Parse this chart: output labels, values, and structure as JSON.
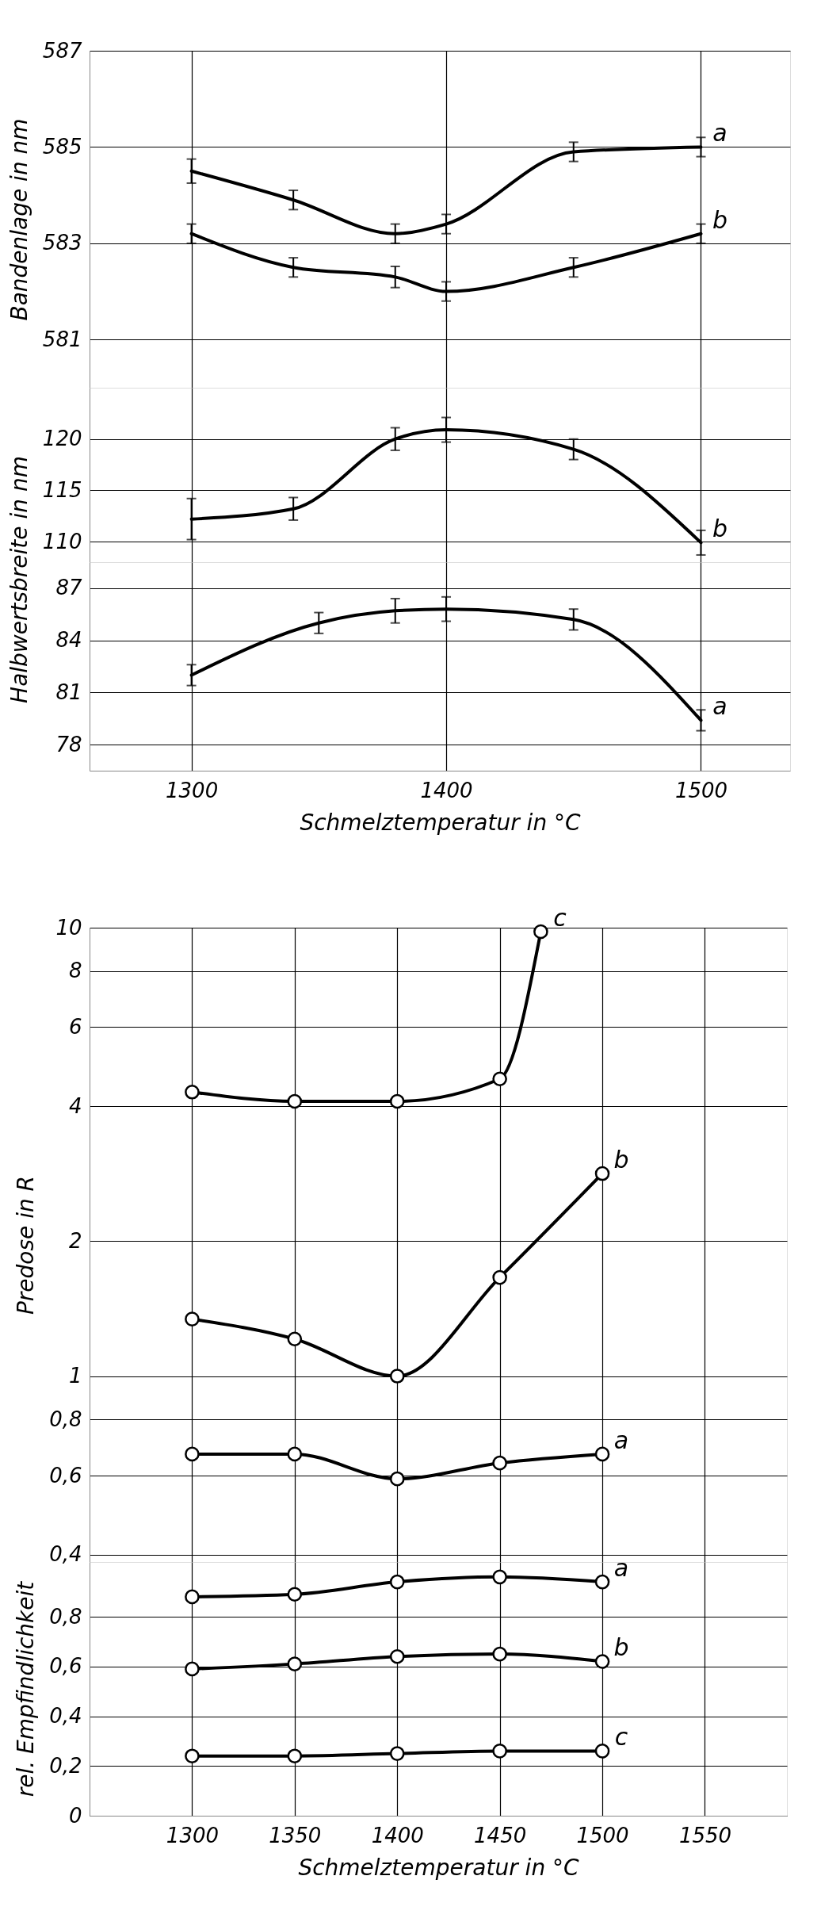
{
  "chart_data": [
    {
      "type": "line",
      "ylabel": "Bandenlage in nm",
      "xlim": [
        1260,
        1535
      ],
      "xticks": [
        1300,
        1400,
        1500
      ],
      "ylim": [
        580,
        587
      ],
      "yticks": [
        581,
        583,
        585,
        587
      ],
      "grid": true,
      "tick_labels": "y",
      "marker": "none",
      "line_style": "solid",
      "x": [
        1300,
        1340,
        1380,
        1400,
        1450,
        1500
      ],
      "series": [
        {
          "name": "a",
          "color": "#000000",
          "values": [
            584.5,
            583.9,
            583.2,
            583.4,
            584.9,
            585.0
          ],
          "errors": [
            0.25,
            0.2,
            0.2,
            0.2,
            0.2,
            0.2
          ]
        },
        {
          "name": "b",
          "color": "#000000",
          "values": [
            583.2,
            582.5,
            582.3,
            582.0,
            582.5,
            583.2
          ],
          "errors": [
            0.2,
            0.2,
            0.22,
            0.2,
            0.2,
            0.2
          ]
        }
      ]
    },
    {
      "type": "line",
      "ylabel": "Halbwertsbreite in nm",
      "xlim": [
        1260,
        1535
      ],
      "xticks": [
        1300,
        1400,
        1500
      ],
      "ylim": [
        108,
        125
      ],
      "yticks": [
        110,
        115,
        120
      ],
      "grid": true,
      "tick_labels": "y",
      "marker": "none",
      "line_style": "solid",
      "x": [
        1300,
        1340,
        1380,
        1400,
        1450,
        1500
      ],
      "series": [
        {
          "name": "b",
          "color": "#000000",
          "values": [
            112.2,
            113.2,
            120,
            120.9,
            119,
            109.9
          ],
          "errors": [
            2,
            1.1,
            1.1,
            1.2,
            1,
            1.2
          ]
        }
      ]
    },
    {
      "type": "line",
      "xlabel": "Schmelztemperatur in °C",
      "xlim": [
        1260,
        1535
      ],
      "xticks": [
        1300,
        1400,
        1500
      ],
      "ylim": [
        76.5,
        88.5
      ],
      "yticks": [
        78,
        81,
        84,
        87
      ],
      "grid": true,
      "marker": "none",
      "line_style": "solid",
      "x": [
        1300,
        1350,
        1380,
        1400,
        1450,
        1500
      ],
      "series": [
        {
          "name": "a",
          "color": "#000000",
          "values": [
            82.0,
            85.0,
            85.7,
            85.8,
            85.2,
            79.4
          ],
          "errors": [
            0.6,
            0.6,
            0.7,
            0.7,
            0.6,
            0.6
          ]
        }
      ]
    },
    {
      "type": "line",
      "ylabel": "Predose in R",
      "log": true,
      "xlim": [
        1250,
        1590
      ],
      "xticks": [
        1300,
        1350,
        1400,
        1450,
        1500,
        1550
      ],
      "ylim": [
        0.385,
        10
      ],
      "yticks": [
        {
          "value": 0.4,
          "label": "0,4"
        },
        {
          "value": 0.6,
          "label": "0,6"
        },
        {
          "value": 0.8,
          "label": "0,8"
        },
        1,
        2,
        4,
        6,
        8,
        10
      ],
      "grid": true,
      "tick_labels": "y",
      "marker": "circle",
      "line_style": "solid",
      "series": [
        {
          "name": "c",
          "color": "#000000",
          "x": [
            1300,
            1350,
            1400,
            1450,
            1470
          ],
          "values": [
            4.3,
            4.1,
            4.1,
            4.6,
            9.8
          ]
        },
        {
          "name": "b",
          "color": "#000000",
          "x": [
            1300,
            1350,
            1400,
            1450,
            1500
          ],
          "values": [
            1.34,
            1.21,
            1.0,
            1.66,
            2.83
          ]
        },
        {
          "name": "a",
          "color": "#000000",
          "x": [
            1300,
            1350,
            1400,
            1450,
            1500
          ],
          "values": [
            0.67,
            0.67,
            0.59,
            0.64,
            0.67
          ]
        }
      ]
    },
    {
      "type": "line",
      "ylabel": "rel. Empfindlichkeit",
      "xlabel": "Schmelztemperatur in °C",
      "xlim": [
        1250,
        1590
      ],
      "xticks": [
        1300,
        1350,
        1400,
        1450,
        1500,
        1550
      ],
      "ylim": [
        0,
        1.02
      ],
      "yticks": [
        0,
        {
          "value": 0.2,
          "label": "0,2"
        },
        {
          "value": 0.4,
          "label": "0,4"
        },
        {
          "value": 0.6,
          "label": "0,6"
        },
        {
          "value": 0.8,
          "label": "0,8"
        }
      ],
      "grid": true,
      "marker": "circle",
      "line_style": "solid",
      "x": [
        1300,
        1350,
        1400,
        1450,
        1500
      ],
      "series": [
        {
          "name": "a",
          "color": "#000000",
          "values": [
            0.88,
            0.89,
            0.94,
            0.96,
            0.94
          ]
        },
        {
          "name": "b",
          "color": "#000000",
          "values": [
            0.59,
            0.61,
            0.64,
            0.65,
            0.62
          ]
        },
        {
          "name": "c",
          "color": "#000000",
          "values": [
            0.24,
            0.24,
            0.25,
            0.26,
            0.26
          ]
        }
      ]
    }
  ]
}
